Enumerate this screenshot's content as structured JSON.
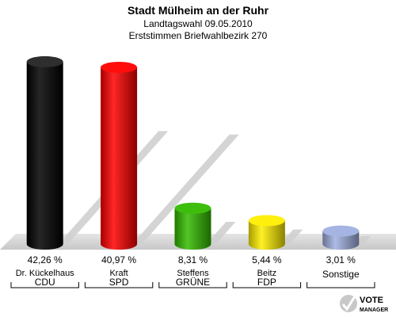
{
  "title": "Stadt Mülheim an der Ruhr",
  "subtitle": "Landtagswahl 09.05.2010",
  "subtitle2": "Erststimmen Briefwahlbezirk 270",
  "chart_data": {
    "type": "bar",
    "title": "Stadt Mülheim an der Ruhr",
    "subtitle": "Landtagswahl 09.05.2010 / Erststimmen Briefwahlbezirk 270",
    "categories": [
      "CDU",
      "SPD",
      "GRÜNE",
      "FDP",
      "Sonstige"
    ],
    "candidates": [
      "Dr. Kückelhaus",
      "Kraft",
      "Steffens",
      "Beitz",
      ""
    ],
    "values": [
      42.26,
      40.97,
      8.31,
      5.44,
      3.01
    ],
    "value_labels": [
      "42,26 %",
      "40,97 %",
      "8,31 %",
      "5,44 %",
      "3,01 %"
    ],
    "colors": [
      "#000000",
      "#ff0000",
      "#33bb00",
      "#ffee00",
      "#a0b0e0"
    ],
    "ylim": [
      0,
      45
    ],
    "grid": false,
    "legend": "none"
  },
  "logo": {
    "line1": "VOTE",
    "line2": "MANAGER"
  }
}
